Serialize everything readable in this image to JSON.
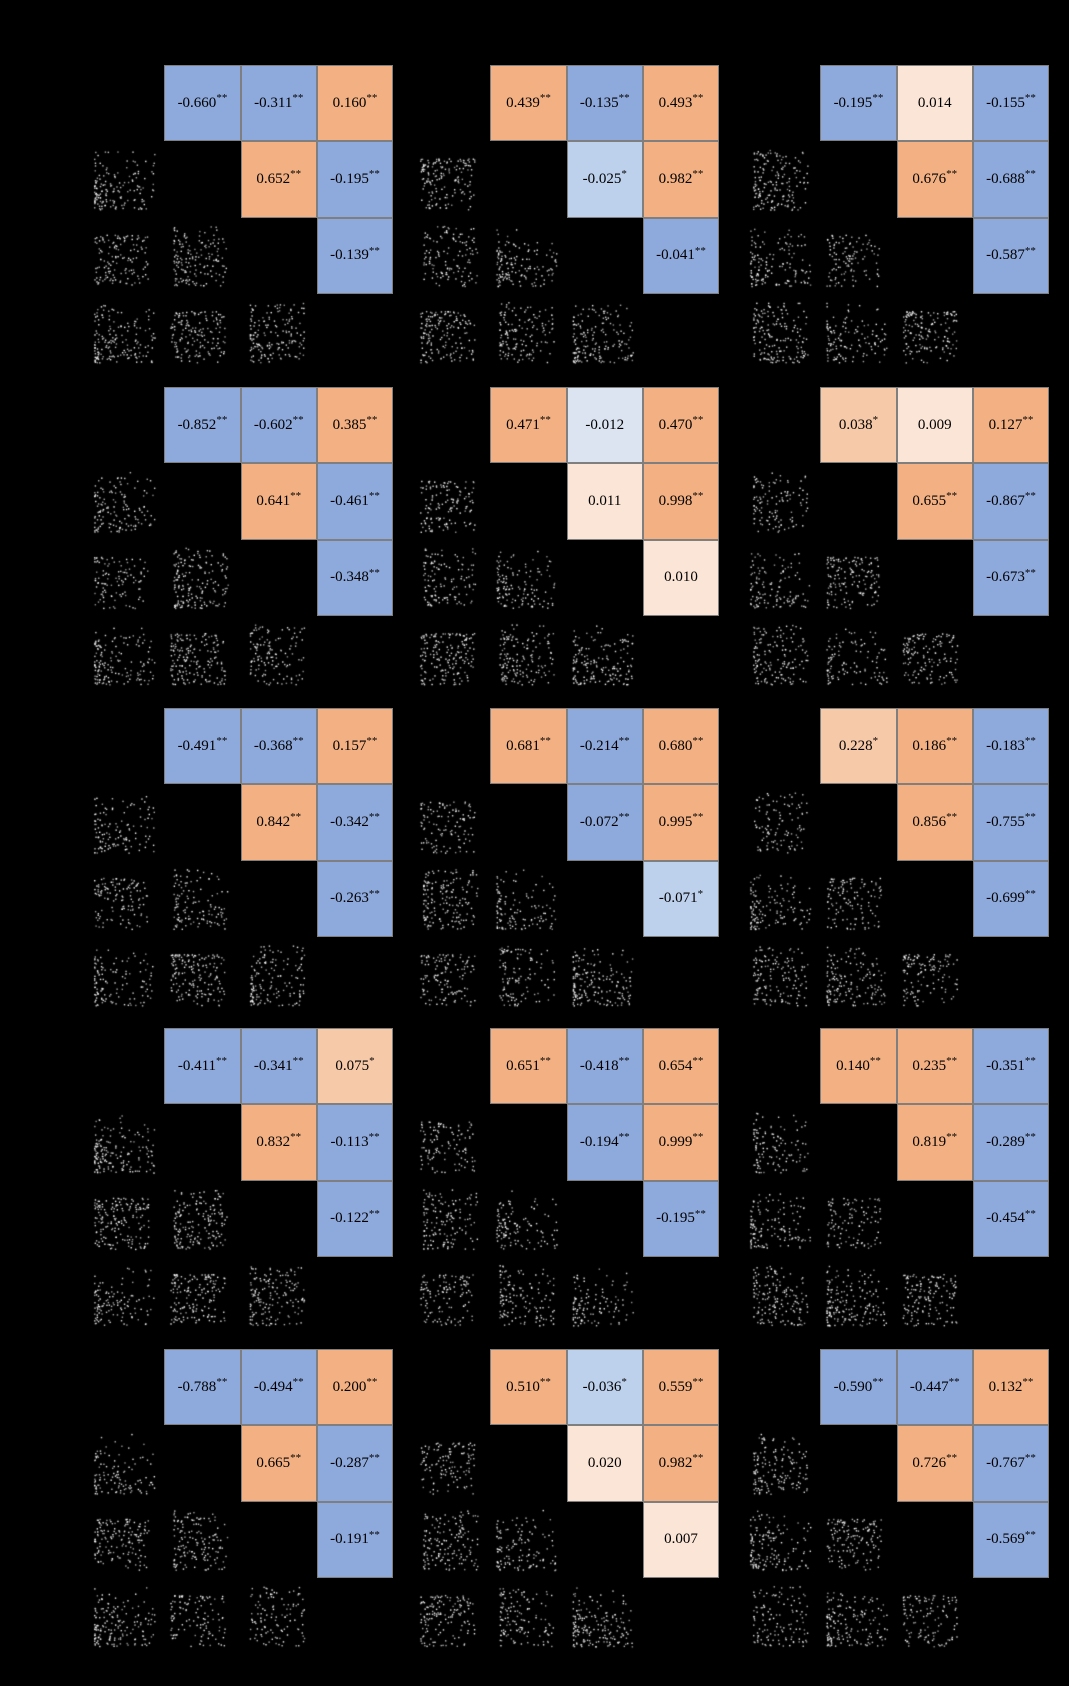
{
  "figure": {
    "background": "#000000",
    "description": "Grid of 15 correlation scatterplot-matrix panels; upper triangles show Pearson correlation cells, lower triangles show scatter plots of white points on black"
  },
  "colors": {
    "background": "#000000",
    "dot": "#FFFFFF",
    "cell_border": "#7F7F7F",
    "value_text": "#000000",
    "positive_strong": "#F3B183",
    "positive_light": "#F6C9A8",
    "positive_faint": "#FBE5D6",
    "negative_strong": "#8EA9DB",
    "negative_light": "#BDD0EC",
    "negative_faint": "#DCE4F2"
  },
  "chart_data": {
    "type": "scatter",
    "subtype": "correlation-scatterplot-matrix-grid",
    "grid": {
      "rows": 5,
      "cols": 3
    },
    "variables_per_panel": 4,
    "panels": [
      {
        "row": 1,
        "col": 1,
        "cells": [
          {
            "pos": "1,2",
            "value": "-0.660",
            "stars": "**",
            "tone": "negative_strong"
          },
          {
            "pos": "1,3",
            "value": "-0.311",
            "stars": "**",
            "tone": "negative_strong"
          },
          {
            "pos": "1,4",
            "value": "0.160",
            "stars": "**",
            "tone": "positive_strong"
          },
          {
            "pos": "2,3",
            "value": "0.652",
            "stars": "**",
            "tone": "positive_strong"
          },
          {
            "pos": "2,4",
            "value": "-0.195",
            "stars": "**",
            "tone": "negative_strong"
          },
          {
            "pos": "3,4",
            "value": "-0.139",
            "stars": "**",
            "tone": "negative_strong"
          }
        ]
      },
      {
        "row": 1,
        "col": 2,
        "cells": [
          {
            "pos": "1,2",
            "value": "0.439",
            "stars": "**",
            "tone": "positive_strong"
          },
          {
            "pos": "1,3",
            "value": "-0.135",
            "stars": "**",
            "tone": "negative_strong"
          },
          {
            "pos": "1,4",
            "value": "0.493",
            "stars": "**",
            "tone": "positive_strong"
          },
          {
            "pos": "2,3",
            "value": "-0.025",
            "stars": "*",
            "tone": "negative_light"
          },
          {
            "pos": "2,4",
            "value": "0.982",
            "stars": "**",
            "tone": "positive_strong"
          },
          {
            "pos": "3,4",
            "value": "-0.041",
            "stars": "**",
            "tone": "negative_strong"
          }
        ]
      },
      {
        "row": 1,
        "col": 3,
        "cells": [
          {
            "pos": "1,2",
            "value": "-0.195",
            "stars": "**",
            "tone": "negative_strong"
          },
          {
            "pos": "1,3",
            "value": "0.014",
            "stars": "",
            "tone": "positive_faint"
          },
          {
            "pos": "1,4",
            "value": "-0.155",
            "stars": "**",
            "tone": "negative_strong"
          },
          {
            "pos": "2,3",
            "value": "0.676",
            "stars": "**",
            "tone": "positive_strong"
          },
          {
            "pos": "2,4",
            "value": "-0.688",
            "stars": "**",
            "tone": "negative_strong"
          },
          {
            "pos": "3,4",
            "value": "-0.587",
            "stars": "**",
            "tone": "negative_strong"
          }
        ]
      },
      {
        "row": 2,
        "col": 1,
        "cells": [
          {
            "pos": "1,2",
            "value": "-0.852",
            "stars": "**",
            "tone": "negative_strong"
          },
          {
            "pos": "1,3",
            "value": "-0.602",
            "stars": "**",
            "tone": "negative_strong"
          },
          {
            "pos": "1,4",
            "value": "0.385",
            "stars": "**",
            "tone": "positive_strong"
          },
          {
            "pos": "2,3",
            "value": "0.641",
            "stars": "**",
            "tone": "positive_strong"
          },
          {
            "pos": "2,4",
            "value": "-0.461",
            "stars": "**",
            "tone": "negative_strong"
          },
          {
            "pos": "3,4",
            "value": "-0.348",
            "stars": "**",
            "tone": "negative_strong"
          }
        ]
      },
      {
        "row": 2,
        "col": 2,
        "cells": [
          {
            "pos": "1,2",
            "value": "0.471",
            "stars": "**",
            "tone": "positive_strong"
          },
          {
            "pos": "1,3",
            "value": "-0.012",
            "stars": "",
            "tone": "negative_faint"
          },
          {
            "pos": "1,4",
            "value": "0.470",
            "stars": "**",
            "tone": "positive_strong"
          },
          {
            "pos": "2,3",
            "value": "0.011",
            "stars": "",
            "tone": "positive_faint"
          },
          {
            "pos": "2,4",
            "value": "0.998",
            "stars": "**",
            "tone": "positive_strong"
          },
          {
            "pos": "3,4",
            "value": "0.010",
            "stars": "",
            "tone": "positive_faint"
          }
        ]
      },
      {
        "row": 2,
        "col": 3,
        "cells": [
          {
            "pos": "1,2",
            "value": "0.038",
            "stars": "*",
            "tone": "positive_light"
          },
          {
            "pos": "1,3",
            "value": "0.009",
            "stars": "",
            "tone": "positive_faint"
          },
          {
            "pos": "1,4",
            "value": "0.127",
            "stars": "**",
            "tone": "positive_strong"
          },
          {
            "pos": "2,3",
            "value": "0.655",
            "stars": "**",
            "tone": "positive_strong"
          },
          {
            "pos": "2,4",
            "value": "-0.867",
            "stars": "**",
            "tone": "negative_strong"
          },
          {
            "pos": "3,4",
            "value": "-0.673",
            "stars": "**",
            "tone": "negative_strong"
          }
        ]
      },
      {
        "row": 3,
        "col": 1,
        "cells": [
          {
            "pos": "1,2",
            "value": "-0.491",
            "stars": "**",
            "tone": "negative_strong"
          },
          {
            "pos": "1,3",
            "value": "-0.368",
            "stars": "**",
            "tone": "negative_strong"
          },
          {
            "pos": "1,4",
            "value": "0.157",
            "stars": "**",
            "tone": "positive_strong"
          },
          {
            "pos": "2,3",
            "value": "0.842",
            "stars": "**",
            "tone": "positive_strong"
          },
          {
            "pos": "2,4",
            "value": "-0.342",
            "stars": "**",
            "tone": "negative_strong"
          },
          {
            "pos": "3,4",
            "value": "-0.263",
            "stars": "**",
            "tone": "negative_strong"
          }
        ]
      },
      {
        "row": 3,
        "col": 2,
        "cells": [
          {
            "pos": "1,2",
            "value": "0.681",
            "stars": "**",
            "tone": "positive_strong"
          },
          {
            "pos": "1,3",
            "value": "-0.214",
            "stars": "**",
            "tone": "negative_strong"
          },
          {
            "pos": "1,4",
            "value": "0.680",
            "stars": "**",
            "tone": "positive_strong"
          },
          {
            "pos": "2,3",
            "value": "-0.072",
            "stars": "**",
            "tone": "negative_strong"
          },
          {
            "pos": "2,4",
            "value": "0.995",
            "stars": "**",
            "tone": "positive_strong"
          },
          {
            "pos": "3,4",
            "value": "-0.071",
            "stars": "*",
            "tone": "negative_light"
          }
        ]
      },
      {
        "row": 3,
        "col": 3,
        "cells": [
          {
            "pos": "1,2",
            "value": "0.228",
            "stars": "*",
            "tone": "positive_light"
          },
          {
            "pos": "1,3",
            "value": "0.186",
            "stars": "**",
            "tone": "positive_strong"
          },
          {
            "pos": "1,4",
            "value": "-0.183",
            "stars": "**",
            "tone": "negative_strong"
          },
          {
            "pos": "2,3",
            "value": "0.856",
            "stars": "**",
            "tone": "positive_strong"
          },
          {
            "pos": "2,4",
            "value": "-0.755",
            "stars": "**",
            "tone": "negative_strong"
          },
          {
            "pos": "3,4",
            "value": "-0.699",
            "stars": "**",
            "tone": "negative_strong"
          }
        ]
      },
      {
        "row": 4,
        "col": 1,
        "cells": [
          {
            "pos": "1,2",
            "value": "-0.411",
            "stars": "**",
            "tone": "negative_strong"
          },
          {
            "pos": "1,3",
            "value": "-0.341",
            "stars": "**",
            "tone": "negative_strong"
          },
          {
            "pos": "1,4",
            "value": "0.075",
            "stars": "*",
            "tone": "positive_light"
          },
          {
            "pos": "2,3",
            "value": "0.832",
            "stars": "**",
            "tone": "positive_strong"
          },
          {
            "pos": "2,4",
            "value": "-0.113",
            "stars": "**",
            "tone": "negative_strong"
          },
          {
            "pos": "3,4",
            "value": "-0.122",
            "stars": "**",
            "tone": "negative_strong"
          }
        ]
      },
      {
        "row": 4,
        "col": 2,
        "cells": [
          {
            "pos": "1,2",
            "value": "0.651",
            "stars": "**",
            "tone": "positive_strong"
          },
          {
            "pos": "1,3",
            "value": "-0.418",
            "stars": "**",
            "tone": "negative_strong"
          },
          {
            "pos": "1,4",
            "value": "0.654",
            "stars": "**",
            "tone": "positive_strong"
          },
          {
            "pos": "2,3",
            "value": "-0.194",
            "stars": "**",
            "tone": "negative_strong"
          },
          {
            "pos": "2,4",
            "value": "0.999",
            "stars": "**",
            "tone": "positive_strong"
          },
          {
            "pos": "3,4",
            "value": "-0.195",
            "stars": "**",
            "tone": "negative_strong"
          }
        ]
      },
      {
        "row": 4,
        "col": 3,
        "cells": [
          {
            "pos": "1,2",
            "value": "0.140",
            "stars": "**",
            "tone": "positive_strong"
          },
          {
            "pos": "1,3",
            "value": "0.235",
            "stars": "**",
            "tone": "positive_strong"
          },
          {
            "pos": "1,4",
            "value": "-0.351",
            "stars": "**",
            "tone": "negative_strong"
          },
          {
            "pos": "2,3",
            "value": "0.819",
            "stars": "**",
            "tone": "positive_strong"
          },
          {
            "pos": "2,4",
            "value": "-0.289",
            "stars": "**",
            "tone": "negative_strong"
          },
          {
            "pos": "3,4",
            "value": "-0.454",
            "stars": "**",
            "tone": "negative_strong"
          }
        ]
      },
      {
        "row": 5,
        "col": 1,
        "cells": [
          {
            "pos": "1,2",
            "value": "-0.788",
            "stars": "**",
            "tone": "negative_strong"
          },
          {
            "pos": "1,3",
            "value": "-0.494",
            "stars": "**",
            "tone": "negative_strong"
          },
          {
            "pos": "1,4",
            "value": "0.200",
            "stars": "**",
            "tone": "positive_strong"
          },
          {
            "pos": "2,3",
            "value": "0.665",
            "stars": "**",
            "tone": "positive_strong"
          },
          {
            "pos": "2,4",
            "value": "-0.287",
            "stars": "**",
            "tone": "negative_strong"
          },
          {
            "pos": "3,4",
            "value": "-0.191",
            "stars": "**",
            "tone": "negative_strong"
          }
        ]
      },
      {
        "row": 5,
        "col": 2,
        "cells": [
          {
            "pos": "1,2",
            "value": "0.510",
            "stars": "**",
            "tone": "positive_strong"
          },
          {
            "pos": "1,3",
            "value": "-0.036",
            "stars": "*",
            "tone": "negative_light"
          },
          {
            "pos": "1,4",
            "value": "0.559",
            "stars": "**",
            "tone": "positive_strong"
          },
          {
            "pos": "2,3",
            "value": "0.020",
            "stars": "",
            "tone": "positive_faint"
          },
          {
            "pos": "2,4",
            "value": "0.982",
            "stars": "**",
            "tone": "positive_strong"
          },
          {
            "pos": "3,4",
            "value": "0.007",
            "stars": "",
            "tone": "positive_faint"
          }
        ]
      },
      {
        "row": 5,
        "col": 3,
        "cells": [
          {
            "pos": "1,2",
            "value": "-0.590",
            "stars": "**",
            "tone": "negative_strong"
          },
          {
            "pos": "1,3",
            "value": "-0.447",
            "stars": "**",
            "tone": "negative_strong"
          },
          {
            "pos": "1,4",
            "value": "0.132",
            "stars": "**",
            "tone": "positive_strong"
          },
          {
            "pos": "2,3",
            "value": "0.726",
            "stars": "**",
            "tone": "positive_strong"
          },
          {
            "pos": "2,4",
            "value": "-0.767",
            "stars": "**",
            "tone": "negative_strong"
          },
          {
            "pos": "3,4",
            "value": "-0.569",
            "stars": "**",
            "tone": "negative_strong"
          }
        ]
      }
    ]
  }
}
